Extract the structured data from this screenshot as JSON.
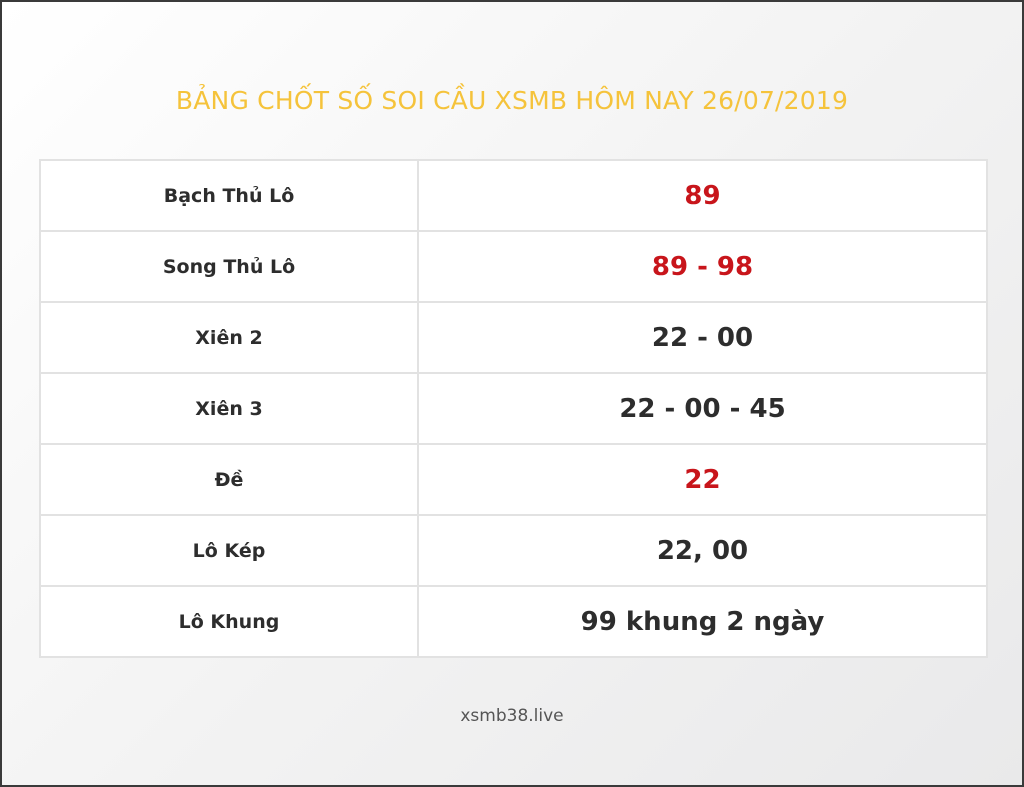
{
  "title": "BẢNG CHỐT SỐ SOI CẦU XSMB HÔM NAY 26/07/2019",
  "colors": {
    "title": "#f5c33b",
    "highlight": "#c8151b",
    "text": "#2d2d2d"
  },
  "rows": [
    {
      "label": "Bạch Thủ Lô",
      "value": "89",
      "highlight": true
    },
    {
      "label": "Song Thủ Lô",
      "value": "89 - 98",
      "highlight": true
    },
    {
      "label": "Xiên 2",
      "value": "22 - 00",
      "highlight": false
    },
    {
      "label": "Xiên 3",
      "value": "22 - 00 - 45",
      "highlight": false
    },
    {
      "label": "Đề",
      "value": "22",
      "highlight": true
    },
    {
      "label": "Lô Kép",
      "value": "22, 00",
      "highlight": false
    },
    {
      "label": "Lô Khung",
      "value": "99 khung 2 ngày",
      "highlight": false
    }
  ],
  "footer": "xsmb38.live"
}
